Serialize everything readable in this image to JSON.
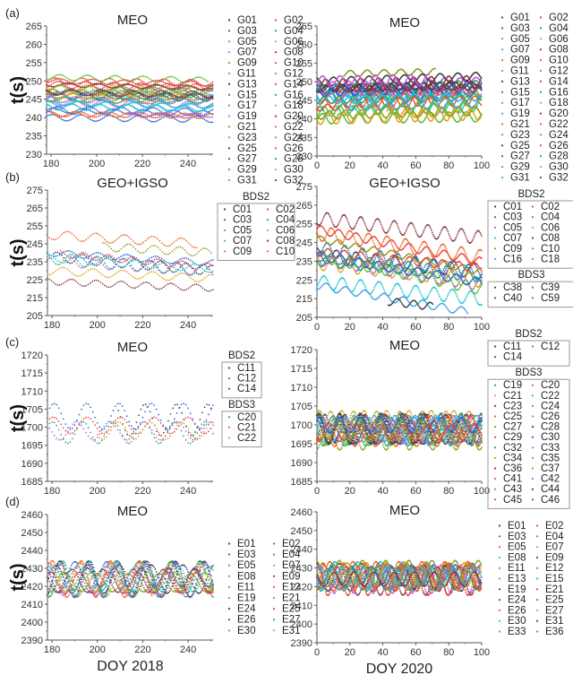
{
  "palette": [
    "#3d3d4d",
    "#e8413a",
    "#2563d8",
    "#1fa37a",
    "#b95de0",
    "#e0a21b",
    "#1bc6d6",
    "#8a3442",
    "#8f9a1e",
    "#f05f1e",
    "#4aa6e8",
    "#5cbf2a"
  ],
  "chart_data": [
    {
      "id": "a-left",
      "panel_label": "(a)",
      "type": "scatter",
      "title": "MEO",
      "xlabel": "",
      "ylabel": "t(s)",
      "xlim": [
        178,
        251
      ],
      "ylim": [
        230,
        265
      ],
      "xticks": [
        180,
        200,
        220,
        240
      ],
      "yticks": [
        230,
        235,
        240,
        245,
        250,
        255,
        260,
        265
      ],
      "legend": {
        "placement": "right",
        "columns": 2,
        "groups": [
          {
            "title": "",
            "boxed": false,
            "entries": [
              "G01",
              "G02",
              "G03",
              "G04",
              "G05",
              "G06",
              "G07",
              "G08",
              "G09",
              "G10",
              "G11",
              "G12",
              "G13",
              "G14",
              "G15",
              "G16",
              "G17",
              "G18",
              "G19",
              "G20",
              "G21",
              "G22",
              "G23",
              "G24",
              "G25",
              "G26",
              "G27",
              "G28",
              "G29",
              "G30",
              "G31",
              "G32"
            ]
          }
        ]
      },
      "series_model": {
        "kind": "wave",
        "count": 32,
        "centers": [
          246,
          250,
          242,
          247,
          245,
          248,
          244,
          249,
          247,
          241,
          243,
          251,
          246,
          250,
          240,
          248,
          244,
          247,
          243,
          249,
          245,
          241,
          246,
          248,
          247,
          249,
          242,
          245,
          241,
          246,
          244,
          247
        ],
        "amplitude": 0.8,
        "period": 13,
        "trend": -0.01,
        "step": 0.7,
        "seed": 11
      }
    },
    {
      "id": "a-right",
      "panel_label": "",
      "type": "scatter",
      "title": "MEO",
      "xlabel": "",
      "ylabel": "",
      "xlim": [
        0,
        100
      ],
      "ylim": [
        230,
        265
      ],
      "xticks": [
        0,
        20,
        40,
        60,
        80,
        100
      ],
      "yticks": [
        230,
        235,
        240,
        245,
        250,
        255,
        260,
        265
      ],
      "legend": {
        "placement": "right",
        "columns": 2,
        "groups": [
          {
            "title": "",
            "boxed": false,
            "entries": [
              "G01",
              "G02",
              "G03",
              "G04",
              "G05",
              "G06",
              "G07",
              "G08",
              "G09",
              "G10",
              "G11",
              "G12",
              "G13",
              "G14",
              "G15",
              "G16",
              "G17",
              "G18",
              "G19",
              "G20",
              "G21",
              "G22",
              "G23",
              "G24",
              "G25",
              "G26",
              "G27",
              "G28",
              "G29",
              "G30",
              "G31",
              "G32"
            ]
          }
        ]
      },
      "series_model": {
        "kind": "wave",
        "count": 32,
        "centers": [
          248,
          244,
          247,
          246,
          249,
          246,
          242,
          248,
          252,
          247,
          245,
          240,
          250,
          243,
          246,
          248,
          247,
          241,
          246,
          249,
          241,
          244,
          243,
          242,
          248,
          246,
          247,
          245,
          250,
          240,
          245,
          248
        ],
        "amplitude": 1.3,
        "period": 10,
        "trend": 0.01,
        "step": 0.35,
        "seed": 23
      }
    },
    {
      "id": "b-left",
      "panel_label": "(b)",
      "type": "scatter",
      "title": "GEO+IGSO",
      "xlabel": "",
      "ylabel": "t(s)",
      "xlim": [
        178,
        251
      ],
      "ylim": [
        205,
        275
      ],
      "xticks": [
        180,
        200,
        220,
        240
      ],
      "yticks": [
        205,
        215,
        225,
        235,
        245,
        255,
        265,
        275
      ],
      "legend": {
        "placement": "right",
        "columns": 2,
        "groups": [
          {
            "title": "BDS2",
            "boxed": true,
            "entries": [
              "C01",
              "C02",
              "C03",
              "C04",
              "C05",
              "C06",
              "C07",
              "C08",
              "C09",
              "C10"
            ]
          }
        ]
      },
      "series_model": {
        "kind": "wave",
        "count": 10,
        "centers": [
          238,
          240,
          240,
          237,
          236,
          230,
          237,
          224,
          245,
          250
        ],
        "amplitude": 2.5,
        "period": 12,
        "trend": -0.08,
        "step": 0.9,
        "seed": 5
      }
    },
    {
      "id": "b-right",
      "panel_label": "",
      "type": "scatter",
      "title": "GEO+IGSO",
      "xlabel": "",
      "ylabel": "",
      "xlim": [
        0,
        100
      ],
      "ylim": [
        205,
        275
      ],
      "xticks": [
        0,
        20,
        40,
        60,
        80,
        100
      ],
      "yticks": [
        205,
        215,
        225,
        235,
        245,
        255,
        265,
        275
      ],
      "legend": {
        "placement": "right",
        "columns": 2,
        "groups": [
          {
            "title": "BDS2",
            "boxed": true,
            "entries": [
              "C01",
              "C02",
              "C03",
              "C04",
              "C05",
              "C06",
              "C07",
              "C08",
              "C09",
              "C10",
              "C16",
              "C18"
            ]
          },
          {
            "title": "BDS3",
            "boxed": true,
            "entries": [
              "C38",
              "C39",
              "C40",
              "C59"
            ]
          }
        ]
      },
      "series_model": {
        "kind": "wave",
        "count": 16,
        "centers": [
          238,
          252,
          242,
          237,
          236,
          234,
          224,
          258,
          247,
          250,
          222,
          238,
          218,
          240,
          238,
          236
        ],
        "amplitude": 3,
        "period": 11,
        "trend": -0.12,
        "step": 0.5,
        "seed": 41
      }
    },
    {
      "id": "c-left",
      "panel_label": "(c)",
      "type": "scatter",
      "title": "MEO",
      "xlabel": "",
      "ylabel": "t(s)",
      "xlim": [
        178,
        251
      ],
      "ylim": [
        1685,
        1720
      ],
      "xticks": [
        180,
        200,
        220,
        240
      ],
      "yticks": [
        1685,
        1690,
        1695,
        1700,
        1705,
        1710,
        1715,
        1720
      ],
      "legend": {
        "placement": "right",
        "columns": 1,
        "groups": [
          {
            "title": "BDS2",
            "boxed": true,
            "entries": [
              "C11",
              "C12",
              "C14"
            ]
          },
          {
            "title": "BDS3",
            "boxed": true,
            "entries": [
              "C20",
              "C21",
              "C22"
            ]
          }
        ]
      },
      "series_model": {
        "kind": "wave",
        "count": 6,
        "colors_idx": [
          0,
          1,
          2,
          3,
          4,
          5
        ],
        "centers": [
          1702,
          1700.5,
          1703,
          1698.5,
          1699,
          1699
        ],
        "amplitude": 3.5,
        "period": 13.5,
        "trend": 0,
        "step": 1.0,
        "seed": 7
      }
    },
    {
      "id": "c-right",
      "panel_label": "",
      "type": "scatter",
      "title": "MEO",
      "xlabel": "",
      "ylabel": "",
      "xlim": [
        0,
        100
      ],
      "ylim": [
        1685,
        1720
      ],
      "xticks": [
        0,
        20,
        40,
        60,
        80,
        100
      ],
      "yticks": [
        1685,
        1690,
        1695,
        1700,
        1705,
        1710,
        1715,
        1720
      ],
      "legend": {
        "placement": "right",
        "columns": 2,
        "groups": [
          {
            "title": "BDS2",
            "boxed": true,
            "entries": [
              "C11",
              "C12",
              "C14"
            ]
          },
          {
            "title": "BDS3",
            "boxed": true,
            "entries": [
              "C19",
              "C20",
              "C21",
              "C22",
              "C23",
              "C24",
              "C25",
              "C26",
              "C27",
              "C28",
              "C29",
              "C30",
              "C32",
              "C33",
              "C34",
              "C35",
              "C36",
              "C37",
              "C41",
              "C42",
              "C43",
              "C44",
              "C45",
              "C46"
            ]
          }
        ]
      },
      "series_model": {
        "kind": "wave",
        "count": 27,
        "centers": [
          1699,
          1698,
          1700,
          1698,
          1699,
          1700,
          1698,
          1699,
          1697,
          1700,
          1699,
          1698,
          1699,
          1700,
          1697,
          1699,
          1698,
          1700,
          1699,
          1698,
          1699,
          1697,
          1700,
          1698,
          1699,
          1698,
          1700
        ],
        "amplitude": 3.2,
        "period": 13.5,
        "trend": 0,
        "step": 0.5,
        "seed": 17
      }
    },
    {
      "id": "d-left",
      "panel_label": "(d)",
      "type": "scatter",
      "title": "MEO",
      "xlabel": "DOY 2018",
      "ylabel": "t(s)",
      "xlim": [
        178,
        251
      ],
      "ylim": [
        2390,
        2460
      ],
      "xticks": [
        180,
        200,
        220,
        240
      ],
      "yticks": [
        2390,
        2400,
        2410,
        2420,
        2430,
        2440,
        2450,
        2460
      ],
      "legend": {
        "placement": "right",
        "columns": 2,
        "groups": [
          {
            "title": "",
            "boxed": false,
            "entries": [
              "E01",
              "E02",
              "E03",
              "E04",
              "E05",
              "E07",
              "E08",
              "E09",
              "E11",
              "E12",
              "E19",
              "E21",
              "E24",
              "E25",
              "E26",
              "E27",
              "E30",
              "E31"
            ]
          }
        ]
      },
      "series_model": {
        "kind": "wave",
        "count": 18,
        "centers": [
          2424,
          2423,
          2425,
          2426,
          2424,
          2425,
          2424,
          2423,
          2422,
          2424,
          2425,
          2421,
          2424,
          2422,
          2425,
          2424,
          2423,
          2425
        ],
        "amplitude": 8,
        "period": 13,
        "trend": 0,
        "step": 0.5,
        "seed": 3
      }
    },
    {
      "id": "d-right",
      "panel_label": "",
      "type": "scatter",
      "title": "MEO",
      "xlabel": "DOY 2020",
      "ylabel": "",
      "xlim": [
        0,
        100
      ],
      "ylim": [
        2390,
        2460
      ],
      "xticks": [
        0,
        20,
        40,
        60,
        80,
        100
      ],
      "yticks": [
        2390,
        2400,
        2410,
        2420,
        2430,
        2440,
        2450,
        2460
      ],
      "legend": {
        "placement": "right",
        "columns": 2,
        "groups": [
          {
            "title": "",
            "boxed": false,
            "entries": [
              "E01",
              "E02",
              "E03",
              "E04",
              "E05",
              "E07",
              "E08",
              "E09",
              "E11",
              "E12",
              "E13",
              "E15",
              "E19",
              "E21",
              "E24",
              "E25",
              "E26",
              "E27",
              "E30",
              "E31",
              "E33",
              "E36"
            ]
          }
        ]
      },
      "series_model": {
        "kind": "wave",
        "count": 22,
        "centers": [
          2425,
          2424,
          2426,
          2425,
          2424,
          2427,
          2426,
          2423,
          2427,
          2425,
          2424,
          2426,
          2425,
          2423,
          2426,
          2424,
          2425,
          2427,
          2426,
          2424,
          2427,
          2426
        ],
        "amplitude": 6,
        "period": 13,
        "trend": 0,
        "step": 0.4,
        "seed": 29
      }
    }
  ]
}
